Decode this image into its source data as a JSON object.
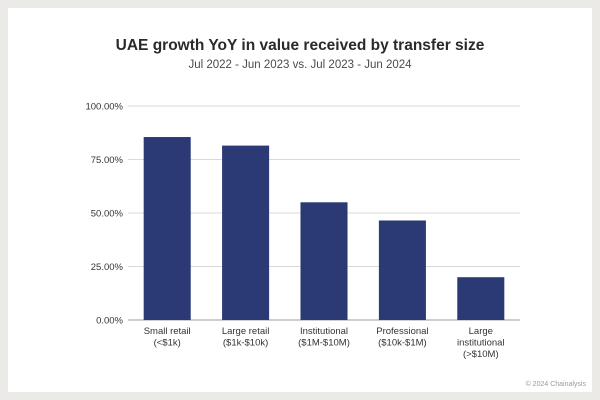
{
  "chart_data": {
    "type": "bar",
    "title": "UAE growth YoY in value received by transfer size",
    "subtitle": "Jul 2022 - Jun 2023 vs. Jul 2023 - Jun 2024",
    "categories": [
      [
        "Small retail",
        "(<$1k)"
      ],
      [
        "Large retail",
        "($1k-$10k)"
      ],
      [
        "Institutional",
        "($1M-$10M)"
      ],
      [
        "Professional",
        "($10k-$1M)"
      ],
      [
        "Large",
        "institutional",
        "(>$10M)"
      ]
    ],
    "values": [
      85.5,
      81.5,
      55.0,
      46.5,
      20.0
    ],
    "value_format": "percent",
    "yticks": [
      "0.00%",
      "25.00%",
      "50.00%",
      "75.00%",
      "100.00%"
    ],
    "ylim": [
      0,
      100
    ],
    "xlabel": "",
    "ylabel": "",
    "grid": true,
    "colors": {
      "bar": "#2b3a75",
      "grid": "#d9d9d9",
      "axis_text": "#333333"
    }
  },
  "credit": "© 2024 Chainalysis"
}
